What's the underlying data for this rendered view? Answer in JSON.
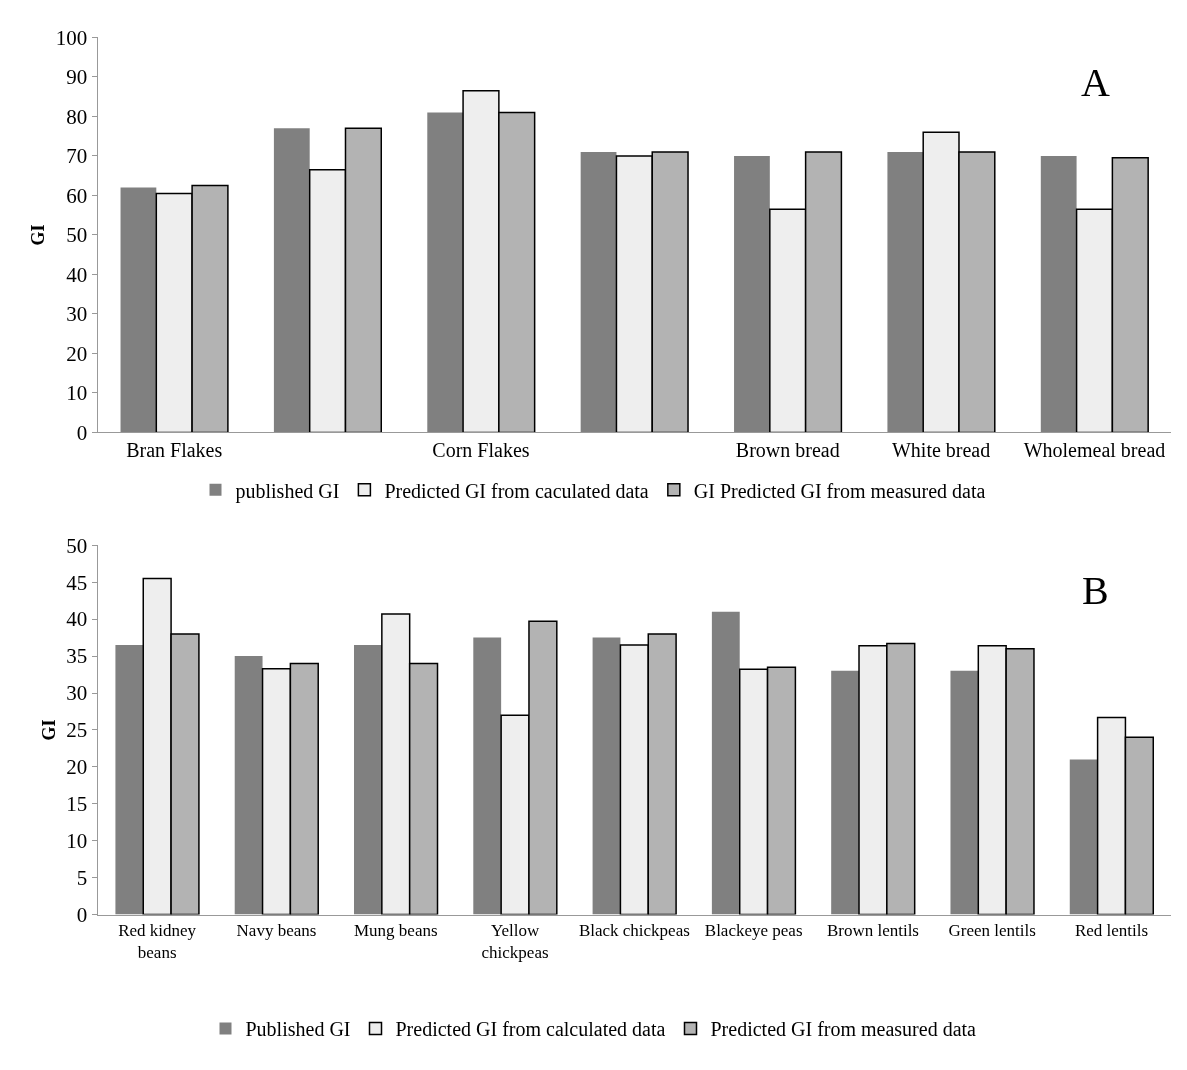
{
  "chart_data": [
    {
      "type": "bar",
      "ylabel": "GI",
      "annotations": [
        "A"
      ],
      "categories": [
        "Bran Flakes",
        null,
        "Corn Flakes",
        null,
        "Brown bread",
        "White bread",
        "Wholemeal bread"
      ],
      "series": [
        {
          "name": "published GI",
          "color": "#808080",
          "values": [
            62,
            77,
            81,
            71,
            70,
            71,
            70
          ]
        },
        {
          "name": "Predicted GI from caculated data",
          "color": "#eeeeee",
          "values": [
            60.5,
            66.5,
            86.5,
            70,
            56.5,
            76,
            56.5
          ]
        },
        {
          "name": "GI Predicted GI from measured data",
          "color": "#b3b3b3",
          "values": [
            62.5,
            77,
            81,
            71,
            71,
            71,
            69.5
          ]
        }
      ],
      "ylim": [
        0,
        100
      ],
      "yticks": [
        0,
        10,
        20,
        30,
        40,
        50,
        60,
        70,
        80,
        90,
        100
      ],
      "grid": false,
      "legend": "bottom"
    },
    {
      "type": "bar",
      "ylabel": "GI",
      "annotations": [
        "B"
      ],
      "categories": [
        "Red kidney beans",
        "Navy beans",
        "Mung beans",
        "Yellow chickpeas",
        "Black chickpeas",
        "Blackeye peas",
        "Brown lentils",
        "Green lentils",
        "Red lentils"
      ],
      "series": [
        {
          "name": "Published GI",
          "color": "#808080",
          "values": [
            36.5,
            35,
            36.5,
            37.5,
            37.5,
            41,
            33,
            33,
            21
          ]
        },
        {
          "name": "Predicted GI from calculated data",
          "color": "#eeeeee",
          "values": [
            45.5,
            33.3,
            40.7,
            27,
            36.5,
            33.2,
            36.4,
            36.4,
            26.7
          ]
        },
        {
          "name": "Predicted GI from measured data",
          "color": "#b3b3b3",
          "values": [
            38,
            34,
            34,
            39.7,
            38,
            33.5,
            36.7,
            36,
            24
          ]
        }
      ],
      "ylim": [
        0,
        50
      ],
      "yticks": [
        0,
        5,
        10,
        15,
        20,
        25,
        30,
        35,
        40,
        45,
        50
      ],
      "grid": false,
      "legend": "bottom"
    }
  ]
}
